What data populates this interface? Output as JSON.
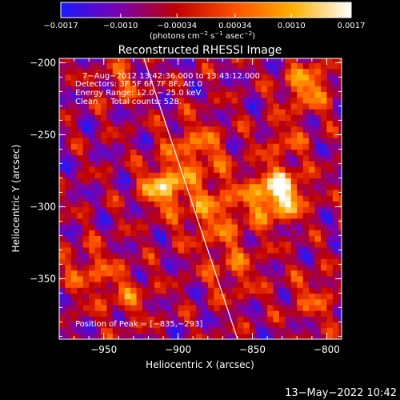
{
  "chart_data": {
    "type": "heatmap",
    "title": "Reconstructed RHESSI Image",
    "xlabel": "Heliocentric X (arcsec)",
    "ylabel": "Heliocentric Y (arcsec)",
    "xlim": [
      -980,
      -790
    ],
    "ylim": [
      -392,
      -197
    ],
    "x_ticks": [
      -950,
      -900,
      -850,
      -800
    ],
    "x_tick_labels": [
      "−950",
      "−900",
      "−850",
      "−800"
    ],
    "y_ticks": [
      -200,
      -250,
      -300,
      -350
    ],
    "y_tick_labels": [
      "−200",
      "−250",
      "−300",
      "−350"
    ],
    "colorbar": {
      "range": [
        -0.0017,
        0.0017
      ],
      "ticks": [
        -0.0017,
        -0.001,
        -0.00034,
        0.00034,
        0.001,
        0.0017
      ],
      "tick_labels": [
        "−0.0017",
        "−0.0010",
        "−0.00034",
        "0.00034",
        "0.0010",
        "0.0017"
      ],
      "unit_text": "(photons cm",
      "unit_sup1": "−2",
      "unit_mid": " s",
      "unit_sup2": "−1",
      "unit_end": " asec",
      "unit_sup3": "−2",
      "unit_close": ")",
      "colors": [
        "#1a1aff",
        "#7a00b0",
        "#c00000",
        "#ff5000",
        "#ffb000",
        "#ffffff"
      ]
    },
    "annotations": [
      "7−Aug−2012 13:42:36.000 to 13:43:12.000",
      "Detectors: 3F 5F 6F 7F 8F, Att 0",
      "Energy Range: 12.0 − 25.0 keV",
      "Clean     Total counts: 528."
    ],
    "peak_label": "Position of Peak = [−835,−293]",
    "peak": [
      -835,
      -293
    ],
    "sources": [
      {
        "x": -835,
        "y": -293,
        "sigma": 12,
        "amp": 1.0
      },
      {
        "x": -912,
        "y": -288,
        "sigma": 10,
        "amp": 0.75
      },
      {
        "x": -878,
        "y": -305,
        "sigma": 16,
        "amp": 0.45
      },
      {
        "x": -890,
        "y": -262,
        "sigma": 14,
        "amp": 0.45
      },
      {
        "x": -815,
        "y": -218,
        "sigma": 11,
        "amp": 0.6
      },
      {
        "x": -960,
        "y": -347,
        "sigma": 13,
        "amp": 0.35
      },
      {
        "x": -935,
        "y": -365,
        "sigma": 11,
        "amp": 0.3
      },
      {
        "x": -940,
        "y": -215,
        "sigma": 10,
        "amp": 0.3
      },
      {
        "x": -865,
        "y": -345,
        "sigma": 14,
        "amp": 0.3
      },
      {
        "x": -810,
        "y": -365,
        "sigma": 12,
        "amp": 0.3
      },
      {
        "x": -830,
        "y": -255,
        "sigma": 10,
        "amp": 0.3
      }
    ],
    "limb": [
      [
        -923,
        -197
      ],
      [
        -860,
        -392
      ]
    ],
    "timestamp": "13−May−2022 10:42"
  }
}
